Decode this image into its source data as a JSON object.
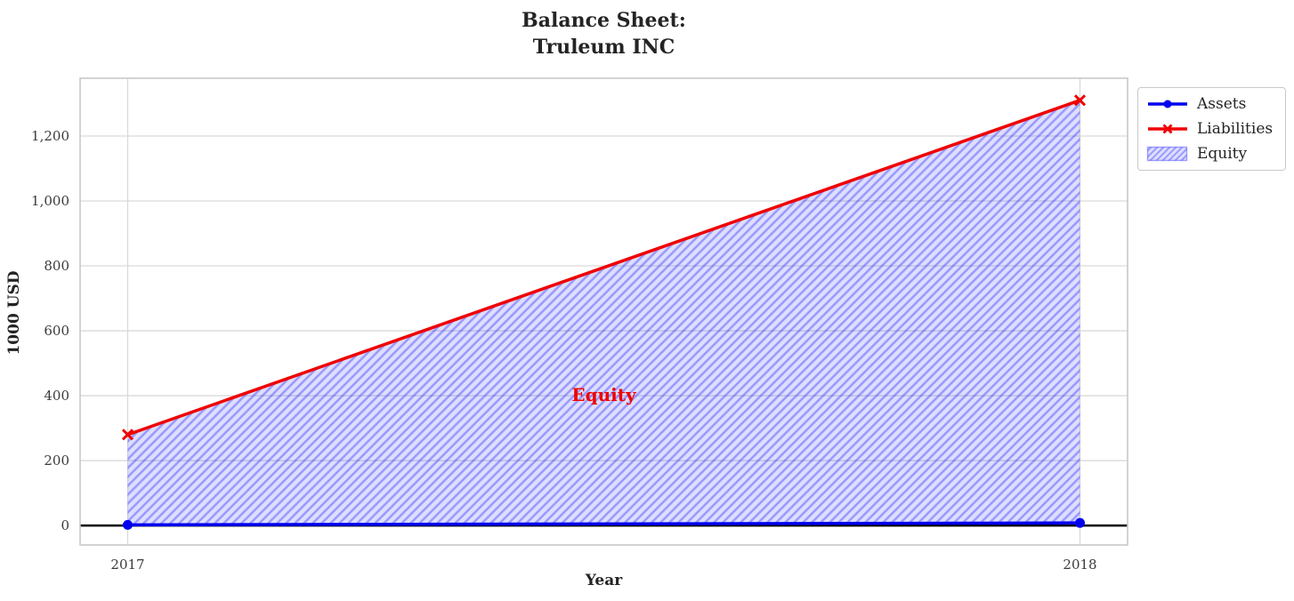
{
  "figure": {
    "title_line1": "Balance Sheet:",
    "title_line2": "Truleum INC"
  },
  "chart_data": {
    "type": "line",
    "title": "Balance Sheet:\nTruleum INC",
    "xlabel": "Year",
    "ylabel": "1000 USD",
    "x": [
      2017,
      2018
    ],
    "series": [
      {
        "name": "Assets",
        "values": [
          2,
          8
        ],
        "color": "#0000ee",
        "marker": "circle",
        "line_width": 3.5
      },
      {
        "name": "Liabilities",
        "values": [
          280,
          1310
        ],
        "color": "#f00000",
        "marker": "x",
        "line_width": 3.5
      }
    ],
    "fill_between": {
      "name": "Equity",
      "lower_series": "Assets",
      "upper_series": "Liabilities",
      "fill_color": "#0000ff",
      "fill_opacity": 0.13,
      "hatch": "//",
      "hatch_opacity": 0.3
    },
    "annotation": {
      "text": "Equity",
      "x": 2017.5,
      "y": 403,
      "color": "#f00000"
    },
    "axhline": {
      "y": 0,
      "color": "#000000",
      "width": 2.5
    },
    "xlim": [
      2016.95,
      2018.05
    ],
    "ylim": [
      -60,
      1378
    ],
    "xticks": [
      2017,
      2018
    ],
    "xtick_labels": [
      "2017",
      "2018"
    ],
    "yticks": [
      0,
      200,
      400,
      600,
      800,
      1000,
      1200
    ],
    "ytick_labels": [
      "0",
      "200",
      "400",
      "600",
      "800",
      "1,000",
      "1,200"
    ],
    "grid": true,
    "legend_position": "outside upper right"
  },
  "legend": {
    "entries": [
      {
        "label": "Assets",
        "type": "line",
        "color": "#0000ee",
        "marker": "circle"
      },
      {
        "label": "Liabilities",
        "type": "line",
        "color": "#f00000",
        "marker": "x"
      },
      {
        "label": "Equity",
        "type": "patch",
        "color": "#0000ff",
        "hatch": "//"
      }
    ]
  },
  "colors": {
    "grid": "#d9d9d9",
    "spine": "#c8c8c8",
    "title_text": "#242424",
    "tick_text": "#3b3b3b",
    "zero_line": "#000000",
    "legend_border": "#c9c9c9"
  }
}
